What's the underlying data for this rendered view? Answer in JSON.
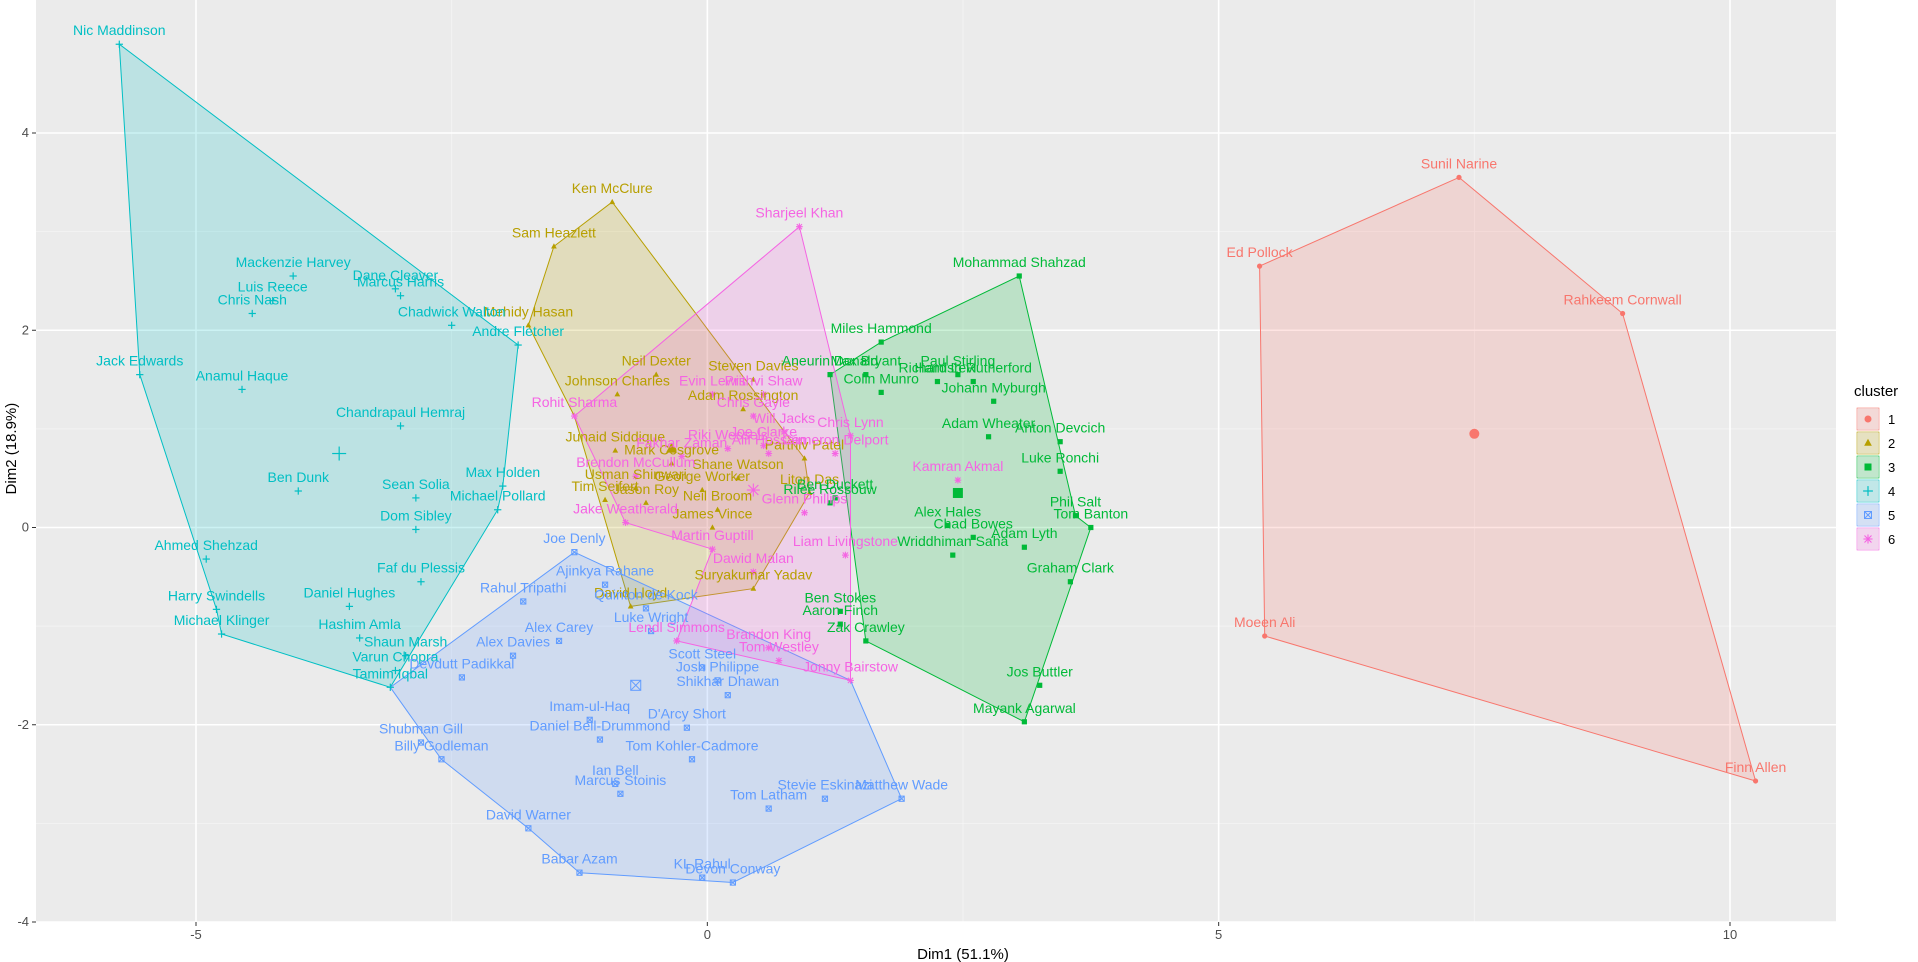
{
  "chart_data": {
    "type": "scatter",
    "title": "",
    "xlabel": "Dim1 (51.1%)",
    "ylabel": "Dim2 (18.9%)",
    "xlim": [
      -6.8,
      11.0
    ],
    "ylim": [
      -4.0,
      5.2
    ],
    "xticks": [
      -5,
      0,
      5,
      10
    ],
    "yticks": [
      -4,
      -2,
      0,
      2,
      4
    ],
    "grid": true,
    "legend": {
      "title": "cluster",
      "position": "right",
      "labels": [
        "1",
        "2",
        "3",
        "4",
        "5",
        "6"
      ]
    },
    "series": [
      {
        "name": "1",
        "color": "#F8766D",
        "marker": "circle",
        "centroid": {
          "x": 7.5,
          "y": 0.95
        },
        "hull": [
          "Sunil Narine",
          "Rahkeem Cornwall",
          "Finn Allen",
          "Moeen Ali",
          "Ed Pollock"
        ],
        "points": [
          {
            "label": "Sunil Narine",
            "x": 7.35,
            "y": 3.55
          },
          {
            "label": "Ed Pollock",
            "x": 5.4,
            "y": 2.65
          },
          {
            "label": "Rahkeem Cornwall",
            "x": 8.95,
            "y": 2.17
          },
          {
            "label": "Moeen Ali",
            "x": 5.45,
            "y": -1.1
          },
          {
            "label": "Finn Allen",
            "x": 10.25,
            "y": -2.57
          }
        ]
      },
      {
        "name": "2",
        "color": "#B79F00",
        "marker": "triangle",
        "centroid": {
          "x": -0.35,
          "y": 0.8
        },
        "hull": [
          "Ken McClure",
          "Parthiv Patel",
          "Liton Das",
          "Suryakumar Yadav",
          "David Lloyd",
          "Rohit Sharma",
          "Mehidy Hasan",
          "Sam Heazlett"
        ],
        "points": [
          {
            "label": "Ken McClure",
            "x": -0.93,
            "y": 3.3
          },
          {
            "label": "Sam Heazlett",
            "x": -1.5,
            "y": 2.85
          },
          {
            "label": "Mehidy Hasan",
            "x": -1.75,
            "y": 2.05
          },
          {
            "label": "Neil Dexter",
            "x": -0.5,
            "y": 1.55
          },
          {
            "label": "Steven Davies",
            "x": 0.45,
            "y": 1.5
          },
          {
            "label": "Johnson Charles",
            "x": -0.88,
            "y": 1.35
          },
          {
            "label": "Adam Rossington",
            "x": 0.35,
            "y": 1.2
          },
          {
            "label": "Junaid Siddique",
            "x": -0.9,
            "y": 0.78
          },
          {
            "label": "Mark Cosgrove",
            "x": -0.35,
            "y": 0.65
          },
          {
            "label": "Parthiv Patel",
            "x": 0.95,
            "y": 0.7
          },
          {
            "label": "Shane Watson",
            "x": 0.3,
            "y": 0.5
          },
          {
            "label": "Usman Shinwari",
            "x": -0.7,
            "y": 0.4
          },
          {
            "label": "George Worker",
            "x": -0.05,
            "y": 0.38
          },
          {
            "label": "Liton Das",
            "x": 1.0,
            "y": 0.35
          },
          {
            "label": "Tim Seifert",
            "x": -1.0,
            "y": 0.28
          },
          {
            "label": "Jason Roy",
            "x": -0.6,
            "y": 0.25
          },
          {
            "label": "Neil Broom",
            "x": 0.1,
            "y": 0.18
          },
          {
            "label": "James Vince",
            "x": 0.05,
            "y": 0.0
          },
          {
            "label": "Suryakumar Yadav",
            "x": 0.45,
            "y": -0.62
          },
          {
            "label": "David Lloyd",
            "x": -0.75,
            "y": -0.8
          }
        ]
      },
      {
        "name": "3",
        "color": "#00BA38",
        "marker": "square",
        "centroid": {
          "x": 2.45,
          "y": 0.35
        },
        "hull": [
          "Mohammad Shahzad",
          "Phil Salt",
          "Tom Banton",
          "Mayank Agarwal",
          "Zak Crawley",
          "Aneurin Donald",
          "Miles Hammond"
        ],
        "points": [
          {
            "label": "Mohammad Shahzad",
            "x": 3.05,
            "y": 2.55
          },
          {
            "label": "Miles Hammond",
            "x": 1.7,
            "y": 1.88
          },
          {
            "label": "Aneurin Donald",
            "x": 1.2,
            "y": 1.55
          },
          {
            "label": "Max Bryant",
            "x": 1.55,
            "y": 1.55
          },
          {
            "label": "Paul Stirling",
            "x": 2.45,
            "y": 1.55
          },
          {
            "label": "Richard Levi",
            "x": 2.25,
            "y": 1.48
          },
          {
            "label": "Hamish Rutherford",
            "x": 2.6,
            "y": 1.48
          },
          {
            "label": "Colin Munro",
            "x": 1.7,
            "y": 1.37
          },
          {
            "label": "Johann Myburgh",
            "x": 2.8,
            "y": 1.28
          },
          {
            "label": "Adam Wheater",
            "x": 2.75,
            "y": 0.92
          },
          {
            "label": "Anton Devcich",
            "x": 3.45,
            "y": 0.87
          },
          {
            "label": "Luke Ronchi",
            "x": 3.45,
            "y": 0.57
          },
          {
            "label": "Ben Duckett",
            "x": 1.25,
            "y": 0.3
          },
          {
            "label": "Rilee Rossouw",
            "x": 1.2,
            "y": 0.25
          },
          {
            "label": "Phil Salt",
            "x": 3.6,
            "y": 0.12
          },
          {
            "label": "Tom Banton",
            "x": 3.75,
            "y": 0.0
          },
          {
            "label": "Alex Hales",
            "x": 2.35,
            "y": 0.02
          },
          {
            "label": "Chad Bowes",
            "x": 2.6,
            "y": -0.1
          },
          {
            "label": "Adam Lyth",
            "x": 3.1,
            "y": -0.2
          },
          {
            "label": "Wriddhiman Saha",
            "x": 2.4,
            "y": -0.28
          },
          {
            "label": "Graham Clark",
            "x": 3.55,
            "y": -0.55
          },
          {
            "label": "Ben Stokes",
            "x": 1.3,
            "y": -0.85
          },
          {
            "label": "Aaron Finch",
            "x": 1.3,
            "y": -0.98
          },
          {
            "label": "Zak Crawley",
            "x": 1.55,
            "y": -1.15
          },
          {
            "label": "Jos Buttler",
            "x": 3.25,
            "y": -1.6
          },
          {
            "label": "Mayank Agarwal",
            "x": 3.1,
            "y": -1.97
          }
        ]
      },
      {
        "name": "4",
        "color": "#00BFC4",
        "marker": "plus",
        "centroid": {
          "x": -3.6,
          "y": 0.75
        },
        "hull": [
          "Nic Maddinson",
          "Andre Fletcher",
          "Max Holden",
          "Michael Pollard",
          "Tamim Iqbal",
          "Michael Klinger",
          "Harry Swindells",
          "Jack Edwards"
        ],
        "points": [
          {
            "label": "Nic Maddinson",
            "x": -5.75,
            "y": 4.9
          },
          {
            "label": "Mackenzie Harvey",
            "x": -4.05,
            "y": 2.55
          },
          {
            "label": "Dane Cleaver",
            "x": -3.05,
            "y": 2.42
          },
          {
            "label": "Marcus Harris",
            "x": -3.0,
            "y": 2.35
          },
          {
            "label": "Luis Reece",
            "x": -4.25,
            "y": 2.3
          },
          {
            "label": "Chris Nash",
            "x": -4.45,
            "y": 2.17
          },
          {
            "label": "Chadwick Walton",
            "x": -2.5,
            "y": 2.05
          },
          {
            "label": "Andre Fletcher",
            "x": -1.85,
            "y": 1.85
          },
          {
            "label": "Jack Edwards",
            "x": -5.55,
            "y": 1.55
          },
          {
            "label": "Anamul Haque",
            "x": -4.55,
            "y": 1.4
          },
          {
            "label": "Chandrapaul Hemraj",
            "x": -3.0,
            "y": 1.03
          },
          {
            "label": "Max Holden",
            "x": -2.0,
            "y": 0.42
          },
          {
            "label": "Sean Solia",
            "x": -2.85,
            "y": 0.3
          },
          {
            "label": "Ben Dunk",
            "x": -4.0,
            "y": 0.37
          },
          {
            "label": "Michael Pollard",
            "x": -2.05,
            "y": 0.18
          },
          {
            "label": "Dom Sibley",
            "x": -2.85,
            "y": -0.02
          },
          {
            "label": "Ahmed Shehzad",
            "x": -4.9,
            "y": -0.32
          },
          {
            "label": "Faf du Plessis",
            "x": -2.8,
            "y": -0.55
          },
          {
            "label": "Daniel Hughes",
            "x": -3.5,
            "y": -0.8
          },
          {
            "label": "Harry Swindells",
            "x": -4.8,
            "y": -0.83
          },
          {
            "label": "Michael Klinger",
            "x": -4.75,
            "y": -1.08
          },
          {
            "label": "Hashim Amla",
            "x": -3.4,
            "y": -1.12
          },
          {
            "label": "Shaun Marsh",
            "x": -2.95,
            "y": -1.3
          },
          {
            "label": "Varun Chopra",
            "x": -3.05,
            "y": -1.45
          },
          {
            "label": "Tamim Iqbal",
            "x": -3.1,
            "y": -1.62
          }
        ]
      },
      {
        "name": "5",
        "color": "#619CFF",
        "marker": "square-x",
        "centroid": {
          "x": -0.7,
          "y": -1.6
        },
        "hull": [
          "Joe Denly",
          "Jonny Bairstow",
          "Matthew Wade",
          "Devon Conway",
          "Babar Azam",
          "David Warner",
          "Billy Godleman",
          "Tamim Iqbal"
        ],
        "points": [
          {
            "label": "Joe Denly",
            "x": -1.3,
            "y": -0.25
          },
          {
            "label": "Ajinkya Rahane",
            "x": -1.0,
            "y": -0.58
          },
          {
            "label": "Rahul Tripathi",
            "x": -1.8,
            "y": -0.75
          },
          {
            "label": "Quinton de Kock",
            "x": -0.6,
            "y": -0.82
          },
          {
            "label": "Luke Wright",
            "x": -0.55,
            "y": -1.05
          },
          {
            "label": "Alex Carey",
            "x": -1.45,
            "y": -1.15
          },
          {
            "label": "Alex Davies",
            "x": -1.9,
            "y": -1.3
          },
          {
            "label": "Devdutt Padikkal",
            "x": -2.4,
            "y": -1.52
          },
          {
            "label": "Scott Steel",
            "x": -0.05,
            "y": -1.42
          },
          {
            "label": "Josh Philippe",
            "x": 0.1,
            "y": -1.55
          },
          {
            "label": "Shikhar Dhawan",
            "x": 0.2,
            "y": -1.7
          },
          {
            "label": "Imam-ul-Haq",
            "x": -1.15,
            "y": -1.95
          },
          {
            "label": "D'Arcy Short",
            "x": -0.2,
            "y": -2.03
          },
          {
            "label": "Daniel Bell-Drummond",
            "x": -1.05,
            "y": -2.15
          },
          {
            "label": "Shubman Gill",
            "x": -2.8,
            "y": -2.18
          },
          {
            "label": "Billy Godleman",
            "x": -2.6,
            "y": -2.35
          },
          {
            "label": "Tom Kohler-Cadmore",
            "x": -0.15,
            "y": -2.35
          },
          {
            "label": "Ian Bell",
            "x": -0.9,
            "y": -2.6
          },
          {
            "label": "Marcus Stoinis",
            "x": -0.85,
            "y": -2.7
          },
          {
            "label": "Stevie Eskinazi",
            "x": 1.15,
            "y": -2.75
          },
          {
            "label": "Matthew Wade",
            "x": 1.9,
            "y": -2.75
          },
          {
            "label": "Tom Latham",
            "x": 0.6,
            "y": -2.85
          },
          {
            "label": "David Warner",
            "x": -1.75,
            "y": -3.05
          },
          {
            "label": "Babar Azam",
            "x": -1.25,
            "y": -3.5
          },
          {
            "label": "KL Rahul",
            "x": -0.05,
            "y": -3.55
          },
          {
            "label": "Devon Conway",
            "x": 0.25,
            "y": -3.6
          }
        ]
      },
      {
        "name": "6",
        "color": "#F564E3",
        "marker": "asterisk",
        "centroid": {
          "x": 0.45,
          "y": 0.38
        },
        "hull": [
          "Sharjeel Khan",
          "Chris Lynn",
          "Jonny Bairstow",
          "Lendl Simmons",
          "Martin Guptill",
          "Jake Weatherald",
          "Rohit Sharma"
        ],
        "points": [
          {
            "label": "Sharjeel Khan",
            "x": 0.9,
            "y": 3.05
          },
          {
            "label": "Evin Lewis",
            "x": 0.05,
            "y": 1.35
          },
          {
            "label": "Prithvi Shaw",
            "x": 0.55,
            "y": 1.35
          },
          {
            "label": "Rohit Sharma",
            "x": -1.3,
            "y": 1.13
          },
          {
            "label": "Chris Gayle",
            "x": 0.45,
            "y": 1.13
          },
          {
            "label": "Will Jacks",
            "x": 0.75,
            "y": 0.97
          },
          {
            "label": "Chris Lynn",
            "x": 1.4,
            "y": 0.93
          },
          {
            "label": "Joe Clarke",
            "x": 0.55,
            "y": 0.83
          },
          {
            "label": "Riki Wessels",
            "x": 0.2,
            "y": 0.8
          },
          {
            "label": "Alif Hossain",
            "x": 0.6,
            "y": 0.75
          },
          {
            "label": "Cameron Delport",
            "x": 1.25,
            "y": 0.75
          },
          {
            "label": "Fakhar Zaman",
            "x": -0.25,
            "y": 0.72
          },
          {
            "label": "Kamran Akmal",
            "x": 2.45,
            "y": 0.48
          },
          {
            "label": "Brendon McCullum",
            "x": -0.7,
            "y": 0.52
          },
          {
            "label": "Jake Weatherald",
            "x": -0.8,
            "y": 0.05
          },
          {
            "label": "Glenn Phillips",
            "x": 0.95,
            "y": 0.15
          },
          {
            "label": "Martin Guptill",
            "x": 0.05,
            "y": -0.22
          },
          {
            "label": "Liam Livingstone",
            "x": 1.35,
            "y": -0.28
          },
          {
            "label": "Dawid Malan",
            "x": 0.45,
            "y": -0.45
          },
          {
            "label": "Lendl Simmons",
            "x": -0.3,
            "y": -1.15
          },
          {
            "label": "Brandon King",
            "x": 0.6,
            "y": -1.22
          },
          {
            "label": "Tom Westley",
            "x": 0.7,
            "y": -1.35
          },
          {
            "label": "Jonny Bairstow",
            "x": 1.4,
            "y": -1.55
          }
        ]
      }
    ]
  }
}
